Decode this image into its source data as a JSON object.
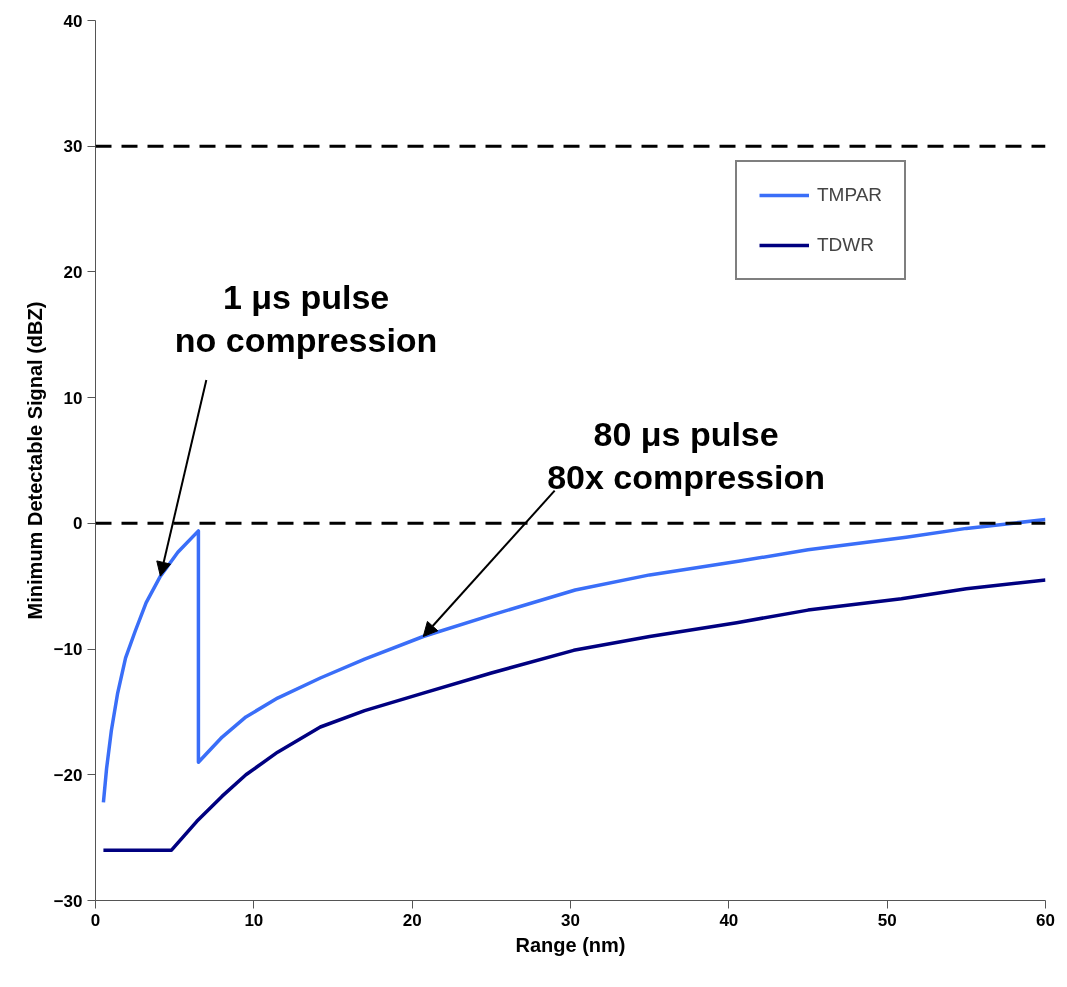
{
  "chart_data": {
    "type": "line",
    "xlabel": "Range (nm)",
    "ylabel": "Minimum Detectable Signal (dBZ)",
    "xlim": [
      0,
      60
    ],
    "xticks": [
      0,
      10,
      20,
      30,
      40,
      50,
      60
    ],
    "ylim": [
      -30,
      40
    ],
    "yticks": [
      -30,
      -20,
      -10,
      0,
      10,
      20,
      30,
      40
    ],
    "grid": false,
    "legend": "top right",
    "line_style": "solid",
    "marker": "none",
    "series": [
      {
        "name": "TMPAR",
        "color": "#3a6ef8",
        "x": [
          0.5,
          0.7,
          1.0,
          1.4,
          1.9,
          2.5,
          3.2,
          4.1,
          5.2,
          6.5,
          6.5,
          8.0,
          9.5,
          11.5,
          14.2,
          17.0,
          20.7,
          25.0,
          30.3,
          35.0,
          40.7,
          45.0,
          51.2,
          55.0,
          60.0
        ],
        "values": [
          -22.2,
          -19.5,
          -16.5,
          -13.5,
          -10.7,
          -8.6,
          -6.3,
          -4.2,
          -2.3,
          -0.6,
          -19.0,
          -17.0,
          -15.4,
          -13.9,
          -12.3,
          -10.8,
          -9.0,
          -7.3,
          -5.3,
          -4.1,
          -3.0,
          -2.1,
          -1.1,
          -0.4,
          0.3
        ]
      },
      {
        "name": "TDWR",
        "color": "#000080",
        "x": [
          0.5,
          4.8,
          6.4,
          8.0,
          9.5,
          11.5,
          14.2,
          17.0,
          20.7,
          25.0,
          30.2,
          35.0,
          40.5,
          45.0,
          50.9,
          55.0,
          60.0
        ],
        "values": [
          -26.0,
          -26.0,
          -23.7,
          -21.7,
          -20.0,
          -18.2,
          -16.2,
          -14.9,
          -13.5,
          -11.9,
          -10.1,
          -9.0,
          -7.9,
          -6.9,
          -6.0,
          -5.2,
          -4.5
        ]
      }
    ],
    "ref_lines": [
      {
        "axis": "y",
        "value": 30,
        "color": "#000000",
        "line_style": "dashed"
      },
      {
        "axis": "y",
        "value": 0,
        "color": "#000000",
        "line_style": "dashed"
      }
    ],
    "annotations": [
      {
        "text": "1 μs pulse\nno compression",
        "x": 4.1,
        "y": -4.2
      },
      {
        "text": "80 μs pulse\n80x compression",
        "x": 20.7,
        "y": -9.0
      }
    ]
  }
}
